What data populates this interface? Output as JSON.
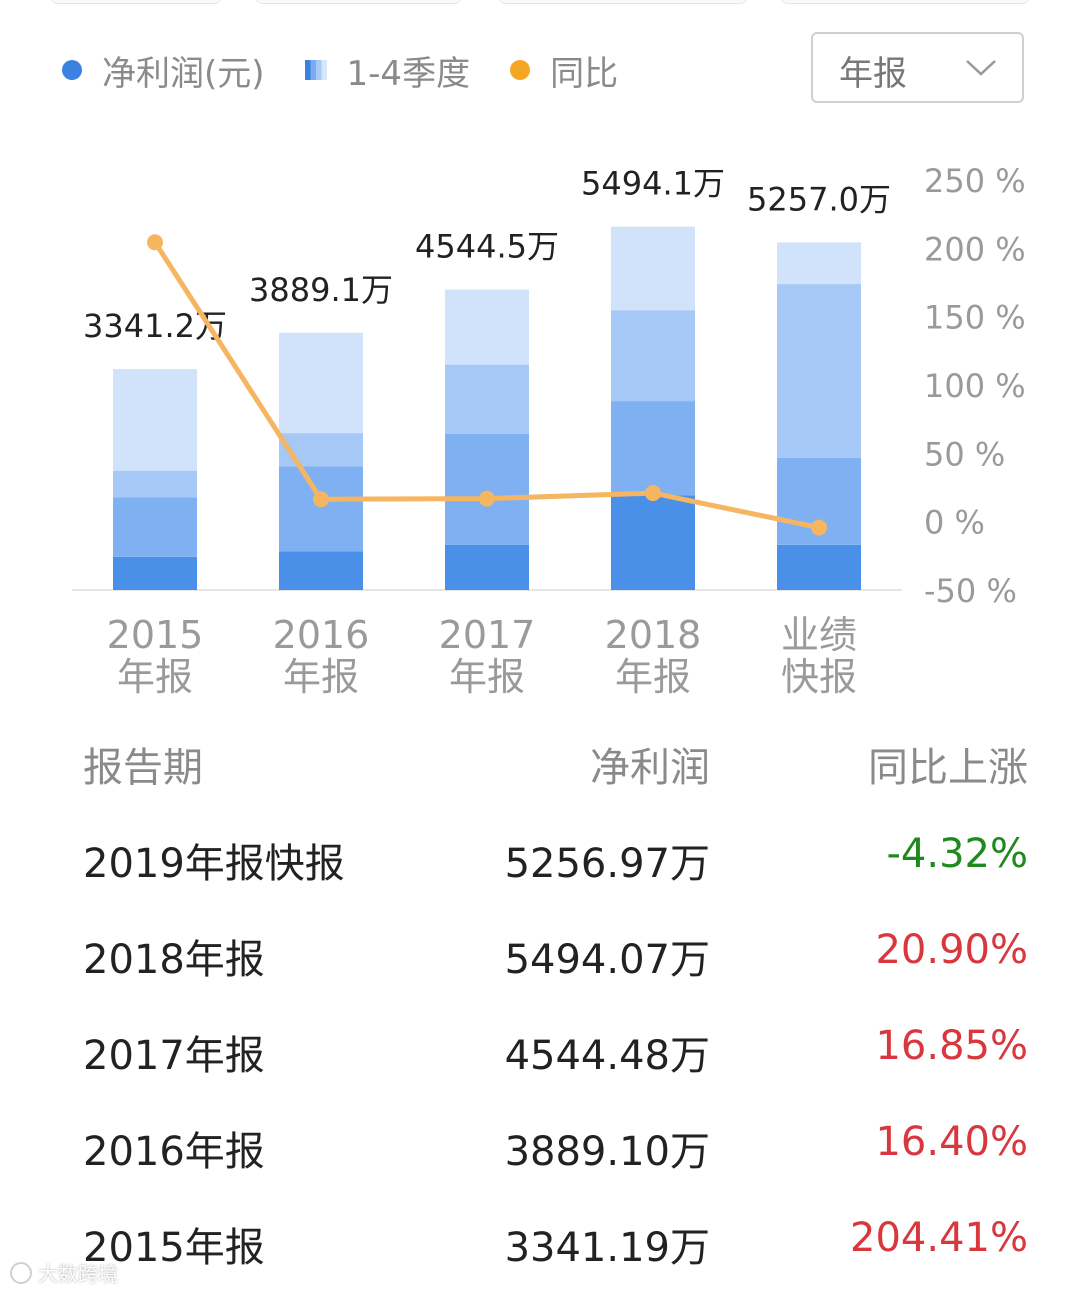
{
  "legend": [
    {
      "label": "净利润(元)",
      "color": "#3b82e0",
      "shape": "dot"
    },
    {
      "label": "1-4季度",
      "shape": "stacked-bars-icon"
    },
    {
      "label": "同比",
      "color": "#f5a623",
      "shape": "dot"
    }
  ],
  "period_select": {
    "selected": "年报"
  },
  "chart_data": {
    "type": "bar",
    "categories": [
      [
        "2015",
        "年报"
      ],
      [
        "2016",
        "年报"
      ],
      [
        "2017",
        "年报"
      ],
      [
        "2018",
        "年报"
      ],
      [
        "业绩",
        "快报"
      ]
    ],
    "bar_labels": [
      "3341.2万",
      "3889.1万",
      "4544.5万",
      "5494.1万",
      "5257.0万"
    ],
    "series": [
      {
        "values": [
          3341.2,
          3889.1,
          4544.5,
          5494.1,
          5257.0
        ],
        "stack_fractions": [
          [
            0.15,
            0.42,
            0.54,
            1.0
          ],
          [
            0.15,
            0.48,
            0.61,
            1.0
          ],
          [
            0.15,
            0.52,
            0.75,
            1.0
          ],
          [
            0.26,
            0.52,
            0.77,
            1.0
          ],
          [
            0.13,
            0.38,
            0.88,
            1.0
          ]
        ],
        "colors": [
          "#4a90e8",
          "#7fb1f2",
          "#a6c8f6",
          "#d1e3fb"
        ]
      },
      {
        "name": "同比",
        "type": "line",
        "axis": "right",
        "values": [
          204.41,
          16.4,
          16.85,
          20.9,
          -4.32
        ],
        "color": "#f5b561"
      }
    ],
    "ylim": [
      0,
      6200
    ],
    "y2lim": [
      -50,
      250
    ],
    "y2ticks": [
      "250 %",
      "200 %",
      "150 %",
      "100 %",
      "50 %",
      "0 %",
      "-50 %"
    ],
    "grid": false
  },
  "table": {
    "headers": [
      "报告期",
      "净利润",
      "同比上涨"
    ],
    "rows": [
      {
        "period": "2019年报快报",
        "profit": "5256.97万",
        "yoy": "-4.32%",
        "direction": "down"
      },
      {
        "period": "2018年报",
        "profit": "5494.07万",
        "yoy": "20.90%",
        "direction": "up"
      },
      {
        "period": "2017年报",
        "profit": "4544.48万",
        "yoy": "16.85%",
        "direction": "up"
      },
      {
        "period": "2016年报",
        "profit": "3889.10万",
        "yoy": "16.40%",
        "direction": "up"
      },
      {
        "period": "2015年报",
        "profit": "3341.19万",
        "yoy": "204.41%",
        "direction": "up"
      }
    ],
    "colors": {
      "up": "#d9363e",
      "down": "#1e8a1e"
    }
  },
  "watermark": "大数跨境"
}
